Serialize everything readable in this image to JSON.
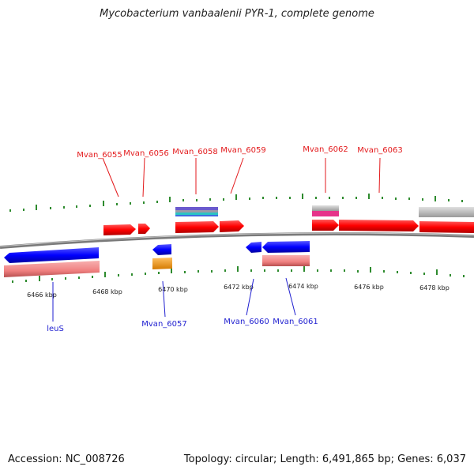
{
  "header": {
    "title": "Mycobacterium vanbaalenii PYR-1, complete genome"
  },
  "footer": {
    "accession": "Accession: NC_008726",
    "summary": "Topology: circular; Length: 6,491,865 bp; Genes: 6,037"
  },
  "scale": {
    "unit": "kbp",
    "ticks": [
      "6466 kbp",
      "6468 kbp",
      "6470 kbp",
      "6472 kbp",
      "6474 kbp",
      "6476 kbp",
      "6478 kbp"
    ]
  },
  "genes": {
    "forward": [
      "Mvan_6055",
      "Mvan_6056",
      "Mvan_6058",
      "Mvan_6059",
      "Mvan_6062",
      "Mvan_6063"
    ],
    "reverse": [
      "leuS",
      "Mvan_6057",
      "Mvan_6060",
      "Mvan_6061"
    ]
  },
  "colors": {
    "forward_gene": "#ff0000",
    "reverse_gene": "#0000ff",
    "forward_label": "#e31a1c",
    "reverse_label": "#1f1fd0",
    "tick": "#2e8b2e",
    "backbone": "#808080",
    "cds_pink": "#f08080",
    "rrna_orange": "#f39c12",
    "other_magenta": "#e6338a",
    "other_gray": "#bdbdbd",
    "other_cyan": "#2bc4c4",
    "other_purple": "#6a5acd"
  }
}
